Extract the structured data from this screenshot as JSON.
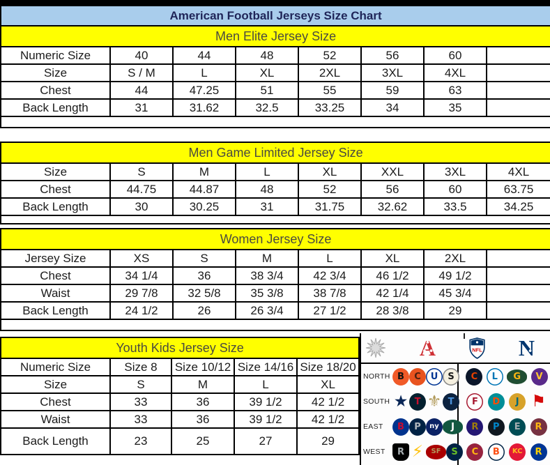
{
  "title": "American Football Jerseys Size Chart",
  "colors": {
    "title_bg": "#a9cdec",
    "title_text": "#1f2558",
    "section_bg": "#ffff00",
    "section_text": "#4a4a40",
    "table_border": "#000000",
    "cell_text": "#1b1b1b",
    "afc_red": "#cf3136",
    "nfc_blue": "#01356e"
  },
  "tables": [
    {
      "section": "Men Elite Jersey Size",
      "rows": [
        {
          "label": "Numeric Size",
          "values": [
            "40",
            "44",
            "48",
            "52",
            "56",
            "60",
            ""
          ]
        },
        {
          "label": "Size",
          "values": [
            "S / M",
            "L",
            "XL",
            "2XL",
            "3XL",
            "4XL",
            ""
          ]
        },
        {
          "label": "Chest",
          "values": [
            "44",
            "47.25",
            "51",
            "55",
            "59",
            "63",
            ""
          ]
        },
        {
          "label": "Back Length",
          "values": [
            "31",
            "31.62",
            "32.5",
            "33.25",
            "34",
            "35",
            ""
          ]
        }
      ]
    },
    {
      "section": "Men Game Limited Jersey Size",
      "rows": [
        {
          "label": "Size",
          "values": [
            "S",
            "M",
            "L",
            "XL",
            "XXL",
            "3XL",
            "4XL"
          ]
        },
        {
          "label": "Chest",
          "values": [
            "44.75",
            "44.87",
            "48",
            "52",
            "56",
            "60",
            "63.75"
          ]
        },
        {
          "label": "Back Length",
          "values": [
            "30",
            "30.25",
            "31",
            "31.75",
            "32.62",
            "33.5",
            "34.25"
          ]
        }
      ]
    },
    {
      "section": "Women Jersey Size",
      "rows": [
        {
          "label": "Jersey Size",
          "values": [
            "XS",
            "S",
            "M",
            "L",
            "XL",
            "2XL",
            ""
          ]
        },
        {
          "label": "Chest",
          "values": [
            "34 1/4",
            "36",
            "38 3/4",
            "42 3/4",
            "46 1/2",
            "49 1/2",
            ""
          ]
        },
        {
          "label": "Waist",
          "values": [
            "29 7/8",
            "32 5/8",
            "35 3/8",
            "38 7/8",
            "42 1/4",
            "45 3/4",
            ""
          ]
        },
        {
          "label": "Back Length",
          "values": [
            "24 1/2",
            "26",
            "26 3/4",
            "27 1/2",
            "28 3/8",
            "29",
            ""
          ]
        }
      ]
    },
    {
      "section": "Youth Kids Jersey Size",
      "rows": [
        {
          "label": "Numeric Size",
          "small_text": true,
          "values": [
            "Size 8",
            "Size 10/12",
            "Size 14/16",
            "Size 18/20"
          ]
        },
        {
          "label": "Size",
          "values": [
            "S",
            "M",
            "L",
            "XL"
          ]
        },
        {
          "label": "Chest",
          "values": [
            "33",
            "36",
            "39 1/2",
            "42 1/2"
          ]
        },
        {
          "label": "Waist",
          "values": [
            "33",
            "36",
            "39 1/2",
            "42 1/2"
          ]
        },
        {
          "label": "Back Length",
          "values": [
            "23",
            "25",
            "27",
            "29"
          ]
        }
      ]
    }
  ],
  "logo_panel": {
    "starburst_icon": "starburst",
    "afc_letter": "A",
    "nfl_label": "NFL",
    "nfc_letter": "N",
    "divisions": [
      {
        "label": "NORTH",
        "afc": [
          "Bengals",
          "Browns",
          "Colts",
          "Steelers"
        ],
        "nfc": [
          "Bears",
          "Lions",
          "Packers",
          "Vikings"
        ]
      },
      {
        "label": "SOUTH",
        "afc": [
          "Cowboys",
          "Texans",
          "Saints",
          "Titans"
        ],
        "nfc": [
          "Falcons",
          "Dolphins",
          "Jaguars",
          "Buccaneers"
        ]
      },
      {
        "label": "EAST",
        "afc": [
          "Bills",
          "Patriots",
          "Giants",
          "Jets"
        ],
        "nfc": [
          "Ravens",
          "Panthers",
          "Eagles",
          "Redskins"
        ]
      },
      {
        "label": "WEST",
        "afc": [
          "Raiders",
          "Chargers",
          "49ers",
          "Seahawks"
        ],
        "nfc": [
          "Cardinals",
          "Broncos",
          "Chiefs",
          "Rams"
        ]
      }
    ],
    "team_styles": {
      "Bengals": {
        "bg": "#f05a28",
        "fg": "#111111",
        "glyph": "B"
      },
      "Browns": {
        "bg": "#e8531f",
        "fg": "#4a2010",
        "glyph": "C"
      },
      "Colts": {
        "bg": "#ffffff",
        "fg": "#003594",
        "glyph": "U",
        "border": "#003594"
      },
      "Steelers": {
        "bg": "#f5f0e0",
        "fg": "#1a1a1a",
        "glyph": "S",
        "border": "#888888"
      },
      "Bears": {
        "bg": "#0b162a",
        "fg": "#e64100",
        "glyph": "C"
      },
      "Lions": {
        "bg": "#ffffff",
        "fg": "#0076b6",
        "glyph": "L",
        "border": "#0076b6"
      },
      "Packers": {
        "bg": "#204e32",
        "fg": "#ffb612",
        "glyph": "G",
        "shape": "oval"
      },
      "Vikings": {
        "bg": "#592a8a",
        "fg": "#ffc62f",
        "glyph": "V"
      },
      "Cowboys": {
        "fg": "#0a2757",
        "glyph": "★",
        "shape": "star"
      },
      "Texans": {
        "bg": "#03202f",
        "fg": "#c8102e",
        "glyph": "T"
      },
      "Saints": {
        "fg": "#b29b5b",
        "glyph": "⚜",
        "shape": "fleur"
      },
      "Titans": {
        "bg": "#0c2340",
        "fg": "#4b92db",
        "glyph": "T"
      },
      "Falcons": {
        "bg": "#ffffff",
        "fg": "#a71930",
        "glyph": "F",
        "border": "#a71930"
      },
      "Dolphins": {
        "bg": "#008e97",
        "fg": "#fc4c02",
        "glyph": "D"
      },
      "Jaguars": {
        "bg": "#d7a22a",
        "fg": "#006778",
        "glyph": "J"
      },
      "Buccaneers": {
        "fg": "#d50a0a",
        "glyph": "⚑",
        "shape": "flag"
      },
      "Bills": {
        "bg": "#00338d",
        "fg": "#c60c30",
        "glyph": "B"
      },
      "Patriots": {
        "bg": "#002244",
        "fg": "#b0b7bc",
        "glyph": "P"
      },
      "Giants": {
        "bg": "#0b2265",
        "fg": "#ffffff",
        "glyph": "ny"
      },
      "Jets": {
        "bg": "#125740",
        "fg": "#ffffff",
        "glyph": "J",
        "shape": "oval"
      },
      "Ravens": {
        "bg": "#241773",
        "fg": "#9e7c0c",
        "glyph": "R"
      },
      "Panthers": {
        "bg": "#101820",
        "fg": "#0085ca",
        "glyph": "P"
      },
      "Eagles": {
        "bg": "#004c54",
        "fg": "#a5acaf",
        "glyph": "E"
      },
      "Redskins": {
        "bg": "#773141",
        "fg": "#ffb612",
        "glyph": "R"
      },
      "Raiders": {
        "bg": "#000000",
        "fg": "#a5acaf",
        "glyph": "R",
        "shape": "shield"
      },
      "Chargers": {
        "fg": "#ffc20e",
        "glyph": "⚡",
        "shape": "bolt"
      },
      "49ers": {
        "bg": "#aa0000",
        "fg": "#b3995d",
        "glyph": "SF",
        "shape": "oval"
      },
      "Seahawks": {
        "bg": "#002244",
        "fg": "#69be28",
        "glyph": "S"
      },
      "Cardinals": {
        "bg": "#97233f",
        "fg": "#ffb612",
        "glyph": "C"
      },
      "Broncos": {
        "bg": "#ffffff",
        "fg": "#fb4f14",
        "glyph": "B",
        "border": "#002244"
      },
      "Chiefs": {
        "bg": "#e31837",
        "fg": "#ffb81c",
        "glyph": "KC"
      },
      "Rams": {
        "bg": "#003594",
        "fg": "#ffd100",
        "glyph": "R"
      }
    }
  }
}
